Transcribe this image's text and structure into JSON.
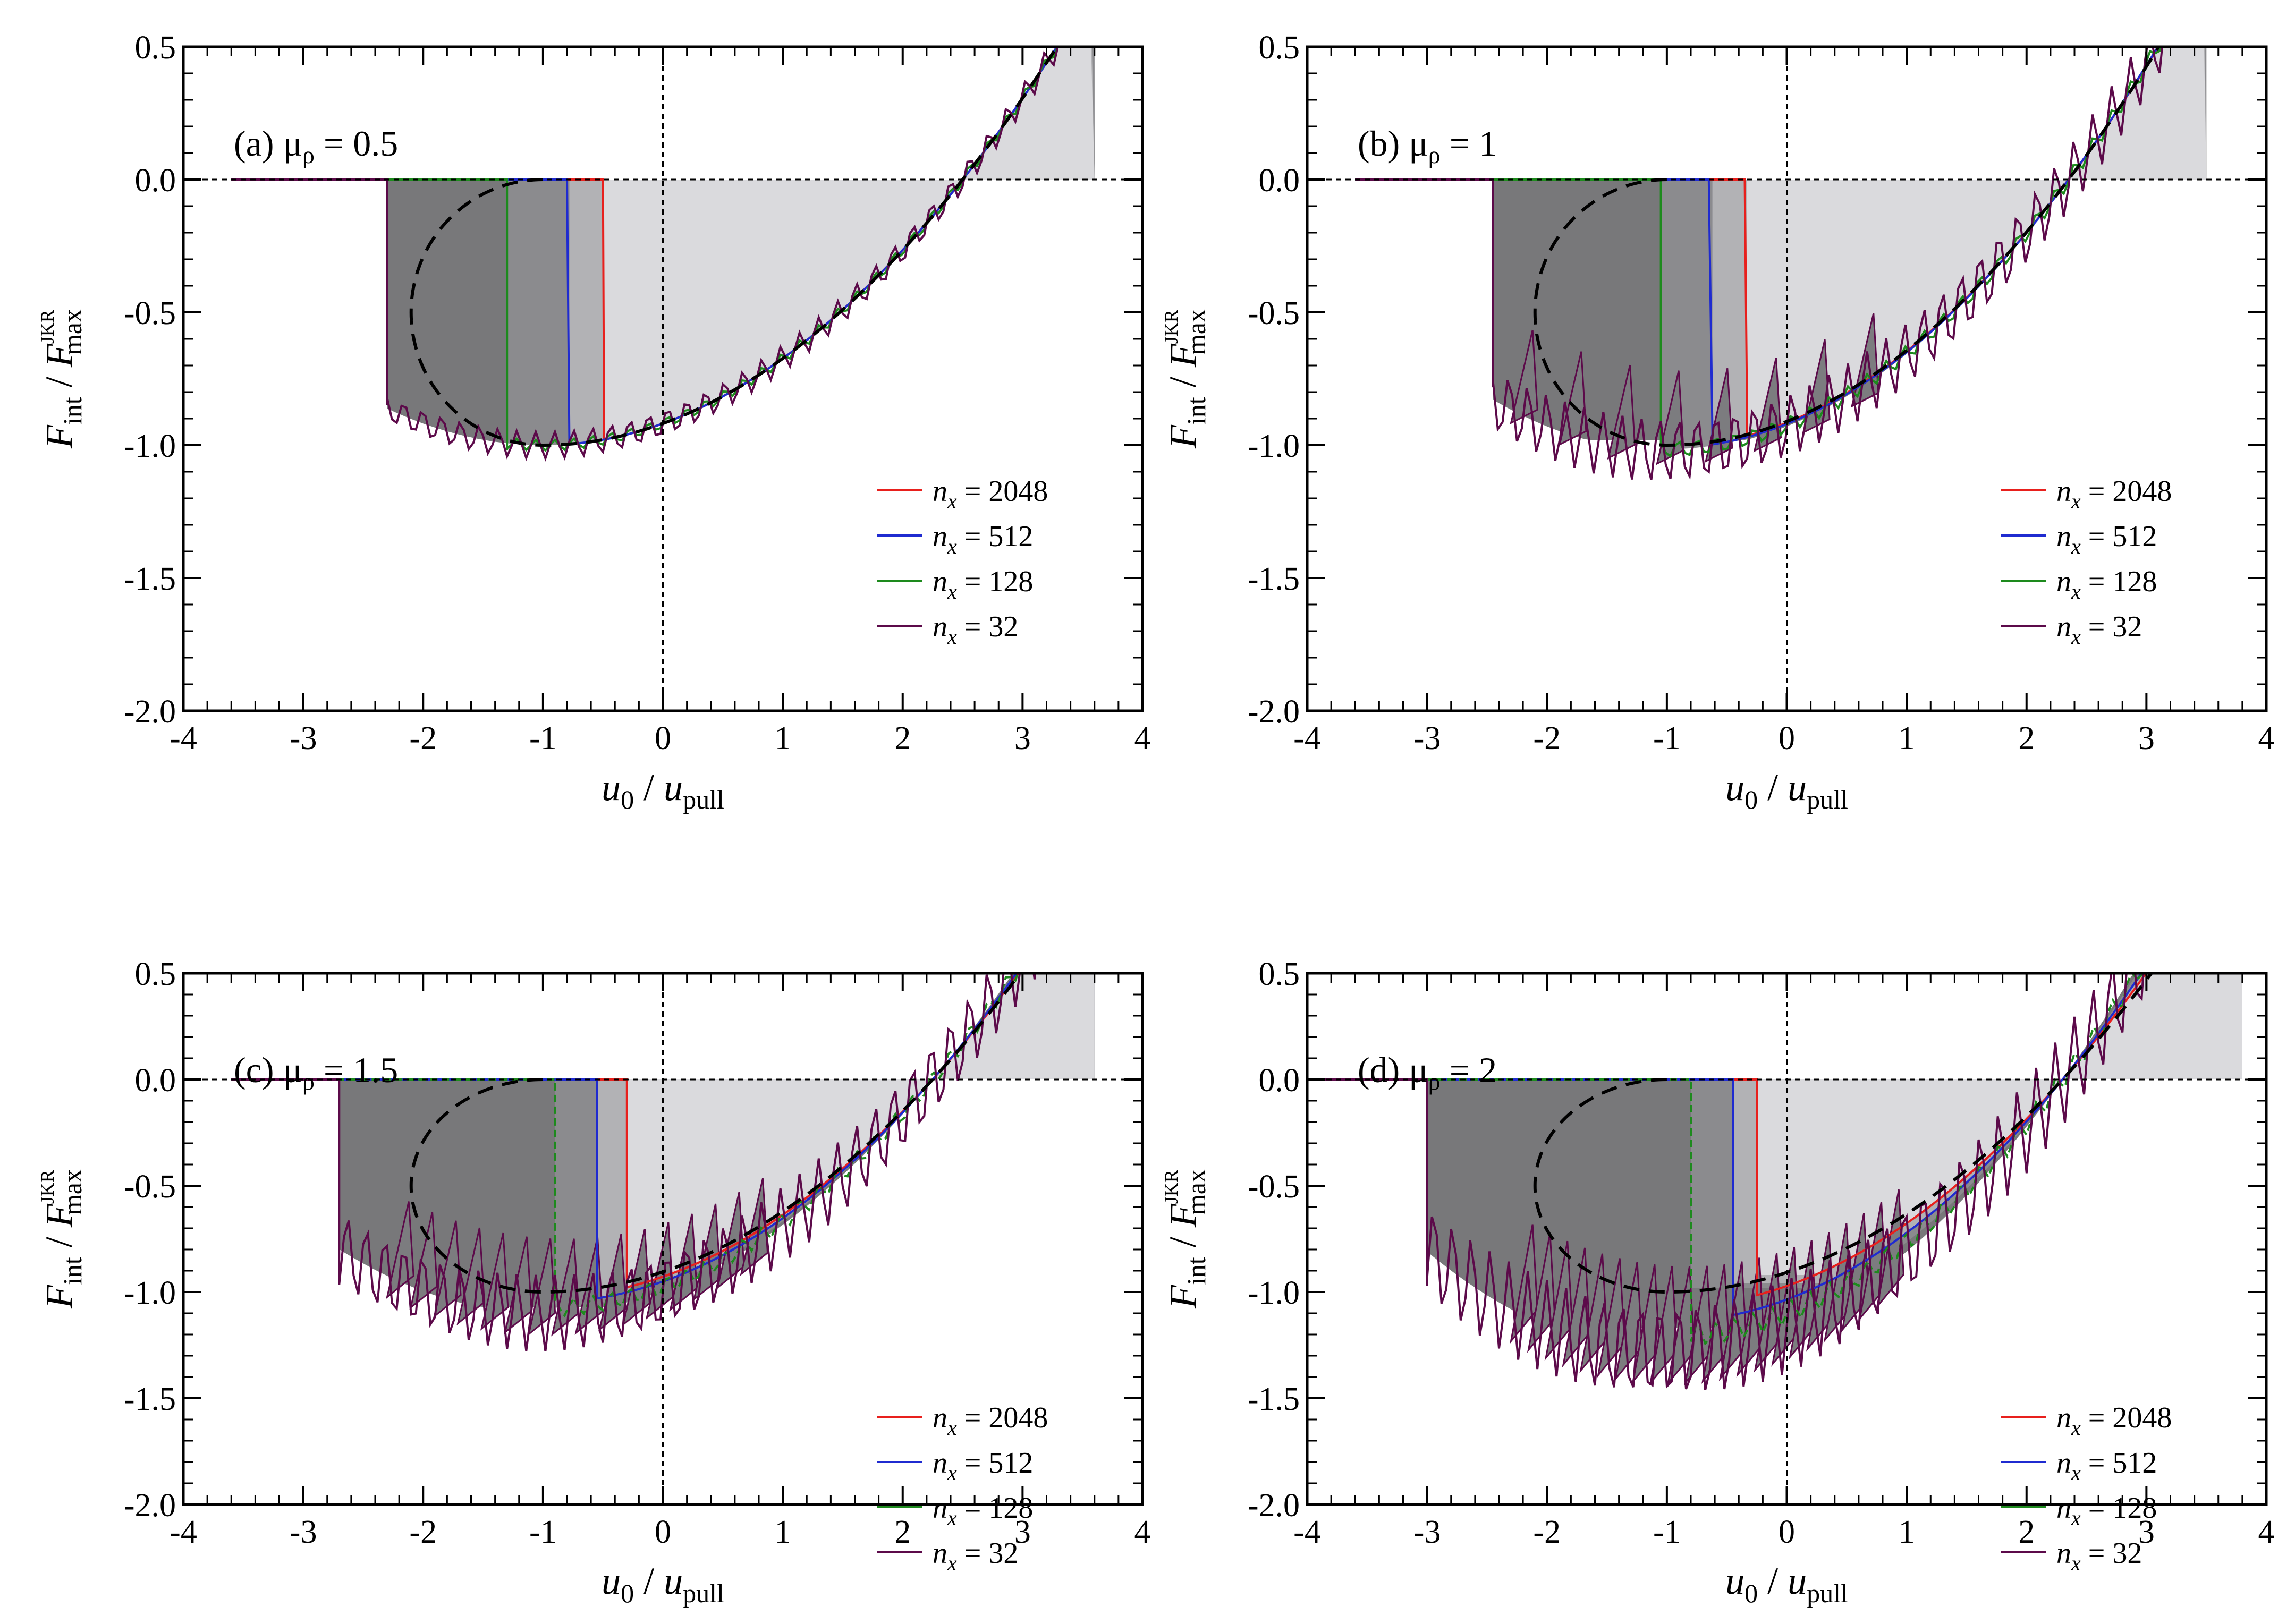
{
  "figure": {
    "xlabel": {
      "main": "u",
      "sub1": "0",
      "slash": "/",
      "main2": "u",
      "sub2": "pull"
    },
    "ylabel": {
      "main": "F",
      "sub": "int",
      "slash": "/",
      "main2": "F",
      "sub2": "max",
      "sup2": "JKR"
    }
  },
  "colors": {
    "n2048": "#e8201d",
    "n512": "#1f2bd0",
    "n128": "#1d8a1d",
    "n32": "#5c0a4a",
    "jkr": "#000000",
    "fill_light": "#dcdcdf",
    "fill_mid": "#b4b4b7",
    "fill_dark": "#8c8c8f",
    "fill_darkest": "#717173"
  },
  "chart_data": [
    {
      "type": "line",
      "panel": "a",
      "label_prefix": "(a) ",
      "label_mu": "μ",
      "label_sub": "ρ",
      "label_value": " = 0.5",
      "xlim": [
        -4,
        4
      ],
      "ylim": [
        -2.0,
        0.5
      ],
      "xticks": [
        "-4",
        "-3",
        "-2",
        "-1",
        "0",
        "1",
        "2",
        "3",
        "4"
      ],
      "yticks": [
        "0.5",
        "0.0",
        "-0.5",
        "-1.0",
        "-1.5",
        "-2.0"
      ],
      "legend": [
        "2048",
        "512",
        "128",
        "32"
      ],
      "legend_prefix": "n",
      "legend_sub": "x",
      "legend_eq": " = ",
      "series": [
        {
          "name": "n_x = 2048",
          "jump_x": -0.49,
          "jump_y": -0.98,
          "approach_start": -3.6,
          "jitter": 0
        },
        {
          "name": "n_x = 512",
          "jump_x": -0.78,
          "jump_y": -0.99,
          "approach_start": -3.6,
          "jitter": 0
        },
        {
          "name": "n_x = 128",
          "jump_x": -1.3,
          "jump_y": -1.02,
          "approach_start": -3.6,
          "jitter": 0.02
        },
        {
          "name": "n_x = 32",
          "jump_x": -2.3,
          "jump_y": -0.85,
          "approach_start": -3.6,
          "jitter": 0.05
        }
      ],
      "hysteresis_x": [
        -2.1,
        2.5,
        3.6
      ],
      "jkr_curve": {
        "center_x": -1.0,
        "min_y": -1.0,
        "u_at_zero": 2.45
      }
    },
    {
      "type": "line",
      "panel": "b",
      "label_prefix": "(b) ",
      "label_mu": "μ",
      "label_sub": "ρ",
      "label_value": " = 1",
      "xlim": [
        -4,
        4
      ],
      "ylim": [
        -2.0,
        0.5
      ],
      "xticks": [
        "-4",
        "-3",
        "-2",
        "-1",
        "0",
        "1",
        "2",
        "3",
        "4"
      ],
      "yticks": [
        "0.5",
        "0.0",
        "-0.5",
        "-1.0",
        "-1.5",
        "-2.0"
      ],
      "legend": [
        "2048",
        "512",
        "128",
        "32"
      ],
      "legend_prefix": "n",
      "legend_sub": "x",
      "legend_eq": " = ",
      "series": [
        {
          "name": "n_x = 2048",
          "jump_x": -0.33,
          "jump_y": -0.92,
          "approach_start": -3.6,
          "jitter": 0
        },
        {
          "name": "n_x = 512",
          "jump_x": -0.62,
          "jump_y": -0.95,
          "approach_start": -3.6,
          "jitter": 0
        },
        {
          "name": "n_x = 128",
          "jump_x": -1.05,
          "jump_y": -1.0,
          "approach_start": -3.6,
          "jitter": 0.03
        },
        {
          "name": "n_x = 32",
          "jump_x": -2.45,
          "jump_y": -0.78,
          "approach_start": -3.6,
          "jitter": 0.12
        }
      ],
      "hysteresis_x": [
        -2.2,
        2.35,
        3.5
      ],
      "jkr_curve": {
        "center_x": -1.0,
        "min_y": -1.0,
        "u_at_zero": 2.45
      }
    },
    {
      "type": "line",
      "panel": "c",
      "label_prefix": "(c) ",
      "label_mu": "μ",
      "label_sub": "ρ",
      "label_value": " = 1.5",
      "xlim": [
        -4,
        4
      ],
      "ylim": [
        -2.0,
        0.5
      ],
      "xticks": [
        "-4",
        "-3",
        "-2",
        "-1",
        "0",
        "1",
        "2",
        "3",
        "4"
      ],
      "yticks": [
        "0.5",
        "0.0",
        "-0.5",
        "-1.0",
        "-1.5",
        "-2.0"
      ],
      "legend": [
        "2048",
        "512",
        "128",
        "32"
      ],
      "legend_prefix": "n",
      "legend_sub": "x",
      "legend_eq": " = ",
      "series": [
        {
          "name": "n_x = 2048",
          "jump_x": -0.3,
          "jump_y": -0.85,
          "approach_start": -3.6,
          "jitter": 0
        },
        {
          "name": "n_x = 512",
          "jump_x": -0.55,
          "jump_y": -0.87,
          "approach_start": -3.6,
          "jitter": 0
        },
        {
          "name": "n_x = 128",
          "jump_x": -0.9,
          "jump_y": -0.88,
          "approach_start": -3.6,
          "jitter": 0.04
        },
        {
          "name": "n_x = 32",
          "jump_x": -2.7,
          "jump_y": -0.87,
          "approach_start": -3.6,
          "jitter": 0.18
        }
      ],
      "hysteresis_x": [
        -2.3,
        2.25,
        3.6
      ],
      "jkr_curve": {
        "center_x": -1.0,
        "min_y": -1.0,
        "u_at_zero": 2.45
      }
    },
    {
      "type": "line",
      "panel": "d",
      "label_prefix": "(d) ",
      "label_mu": "μ",
      "label_sub": "ρ",
      "label_value": " = 2",
      "xlim": [
        -4,
        4
      ],
      "ylim": [
        -2.0,
        0.5
      ],
      "xticks": [
        "-4",
        "-3",
        "-2",
        "-1",
        "0",
        "1",
        "2",
        "3",
        "4"
      ],
      "yticks": [
        "0.5",
        "0.0",
        "-0.5",
        "-1.0",
        "-1.5",
        "-2.0"
      ],
      "legend": [
        "2048",
        "512",
        "128",
        "32"
      ],
      "legend_prefix": "n",
      "legend_sub": "x",
      "legend_eq": " = ",
      "series": [
        {
          "name": "n_x = 2048",
          "jump_x": -0.25,
          "jump_y": -0.72,
          "approach_start": -4.0,
          "jitter": 0
        },
        {
          "name": "n_x = 512",
          "jump_x": -0.45,
          "jump_y": -0.76,
          "approach_start": -4.0,
          "jitter": 0
        },
        {
          "name": "n_x = 128",
          "jump_x": -0.8,
          "jump_y": -0.78,
          "approach_start": -4.0,
          "jitter": 0.05
        },
        {
          "name": "n_x = 32",
          "jump_x": -3.0,
          "jump_y": -0.97,
          "approach_start": -4.0,
          "jitter": 0.22
        }
      ],
      "hysteresis_x": [
        -2.5,
        2.3,
        3.8
      ],
      "jkr_curve": {
        "center_x": -1.0,
        "min_y": -1.0,
        "u_at_zero": 2.45
      }
    }
  ]
}
